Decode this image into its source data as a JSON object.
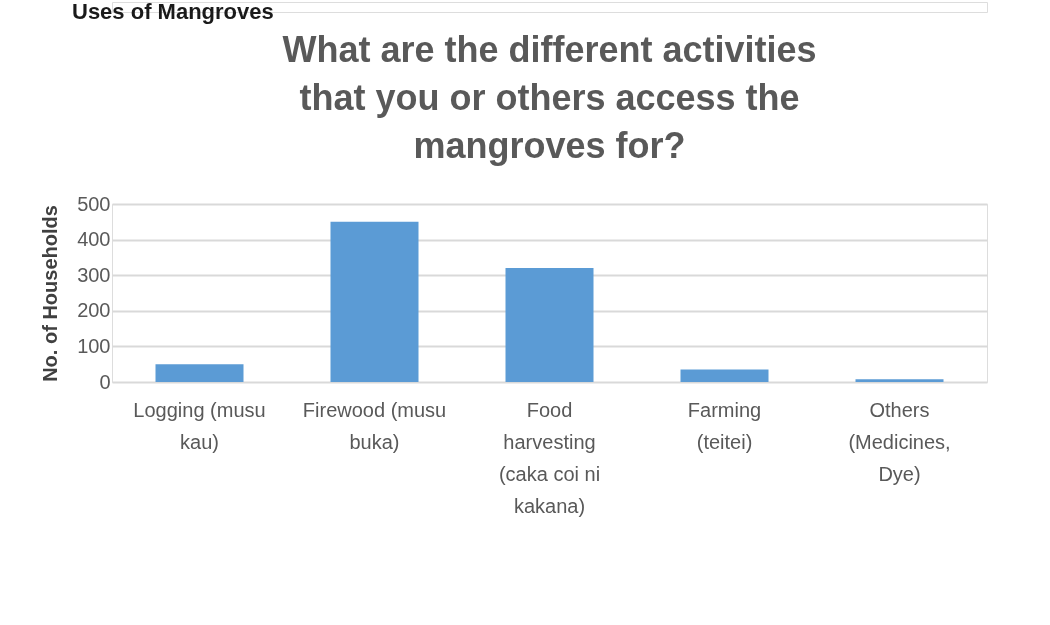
{
  "chart_data": {
    "type": "bar",
    "title": "What are the different activities that you or others access the mangroves for?",
    "annotations": [
      "Uses of Mangroves"
    ],
    "ylabel": "No. of Households",
    "categories": [
      "Logging (musu kau)",
      "Firewood (musu buka)",
      "Food harvesting (caka coi ni kakana)",
      "Farming (teitei)",
      "Others (Medicines, Dye)"
    ],
    "values": [
      50,
      450,
      320,
      35,
      8
    ],
    "color": "#5b9bd5",
    "ylim": [
      0,
      500
    ],
    "yticks": [
      0,
      100,
      200,
      300,
      400,
      500
    ],
    "grid": "y"
  }
}
